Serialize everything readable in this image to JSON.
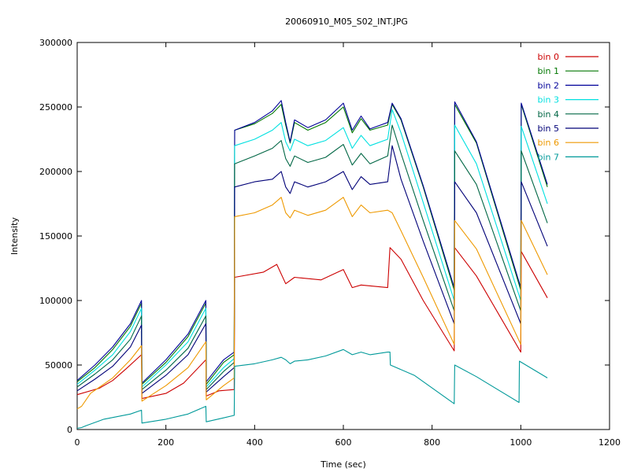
{
  "chart_data": {
    "type": "line",
    "title": "20060910_M05_S02_INT.JPG",
    "xlabel": "Time (sec)",
    "ylabel": "Intensity",
    "xlim": [
      0,
      1200
    ],
    "ylim": [
      0,
      300000
    ],
    "xticks": [
      0,
      200,
      400,
      600,
      800,
      1000,
      1200
    ],
    "yticks": [
      0,
      50000,
      100000,
      150000,
      200000,
      250000,
      300000
    ],
    "grid": false,
    "legend_position": "top-right",
    "series": [
      {
        "name": "bin 0",
        "color": "#cc0000",
        "x": [
          0,
          50,
          80,
          110,
          145,
          146,
          200,
          240,
          290,
          291,
          320,
          354,
          355,
          420,
          450,
          470,
          490,
          550,
          600,
          620,
          640,
          700,
          705,
          730,
          780,
          850,
          851,
          900,
          1000,
          1001,
          1060
        ],
        "y": [
          27000,
          32000,
          38000,
          47000,
          58000,
          24000,
          28000,
          36000,
          54000,
          26000,
          30000,
          31000,
          118000,
          122000,
          128000,
          113000,
          118000,
          116000,
          124000,
          110000,
          112000,
          110000,
          141000,
          132000,
          100000,
          61000,
          141000,
          119000,
          60000,
          138000,
          102000
        ]
      },
      {
        "name": "bin 1",
        "color": "#007700",
        "x": [
          0,
          40,
          80,
          120,
          145,
          146,
          200,
          250,
          290,
          291,
          330,
          354,
          355,
          400,
          440,
          460,
          470,
          480,
          490,
          520,
          560,
          600,
          620,
          640,
          660,
          700,
          710,
          730,
          780,
          850,
          851,
          900,
          1000,
          1001,
          1060
        ],
        "y": [
          37000,
          48000,
          62000,
          80000,
          98000,
          35000,
          52000,
          72000,
          98000,
          35000,
          52000,
          58000,
          232000,
          237000,
          245000,
          252000,
          236000,
          222000,
          238000,
          232000,
          238000,
          250000,
          230000,
          241000,
          232000,
          236000,
          252000,
          240000,
          188000,
          108000,
          252000,
          222000,
          108000,
          252000,
          188000
        ]
      },
      {
        "name": "bin 2",
        "color": "#000099",
        "x": [
          0,
          40,
          80,
          120,
          145,
          146,
          200,
          250,
          290,
          291,
          330,
          354,
          355,
          400,
          440,
          460,
          470,
          480,
          490,
          520,
          560,
          600,
          620,
          640,
          660,
          700,
          710,
          730,
          780,
          850,
          851,
          900,
          1000,
          1001,
          1060
        ],
        "y": [
          38000,
          50000,
          64000,
          82000,
          100000,
          36000,
          54000,
          74000,
          100000,
          37000,
          54000,
          60000,
          232000,
          238000,
          247000,
          255000,
          238000,
          223000,
          240000,
          234000,
          240000,
          253000,
          232000,
          243000,
          233000,
          238000,
          253000,
          241000,
          189000,
          110000,
          254000,
          223000,
          110000,
          253000,
          190000
        ]
      },
      {
        "name": "bin 3",
        "color": "#00e0e0",
        "x": [
          0,
          40,
          80,
          120,
          145,
          146,
          200,
          250,
          290,
          291,
          330,
          354,
          355,
          400,
          440,
          460,
          470,
          480,
          490,
          520,
          560,
          600,
          620,
          640,
          660,
          700,
          710,
          730,
          780,
          850,
          851,
          900,
          1000,
          1001,
          1060
        ],
        "y": [
          35000,
          46000,
          58000,
          76000,
          94000,
          33000,
          50000,
          68000,
          94000,
          33000,
          48000,
          55000,
          220000,
          225000,
          232000,
          238000,
          223000,
          216000,
          225000,
          220000,
          224000,
          234000,
          218000,
          228000,
          220000,
          225000,
          248000,
          230000,
          176000,
          100000,
          236000,
          206000,
          100000,
          235000,
          175000
        ]
      },
      {
        "name": "bin 4",
        "color": "#006644",
        "x": [
          0,
          40,
          80,
          120,
          145,
          146,
          200,
          250,
          290,
          291,
          330,
          354,
          355,
          400,
          440,
          460,
          470,
          480,
          490,
          520,
          560,
          600,
          620,
          640,
          660,
          700,
          710,
          730,
          780,
          850,
          851,
          900,
          1000,
          1001,
          1060
        ],
        "y": [
          33000,
          43000,
          54000,
          70000,
          88000,
          31000,
          46000,
          63000,
          88000,
          31000,
          45000,
          52000,
          206000,
          212000,
          218000,
          224000,
          210000,
          204000,
          212000,
          207000,
          211000,
          221000,
          205000,
          214000,
          206000,
          212000,
          236000,
          214000,
          162000,
          92000,
          216000,
          190000,
          92000,
          216000,
          160000
        ]
      },
      {
        "name": "bin 5",
        "color": "#000077",
        "x": [
          0,
          40,
          80,
          120,
          145,
          146,
          200,
          250,
          290,
          291,
          330,
          354,
          355,
          400,
          440,
          460,
          470,
          480,
          490,
          520,
          560,
          600,
          620,
          640,
          660,
          700,
          710,
          730,
          780,
          850,
          851,
          900,
          1000,
          1001,
          1060
        ],
        "y": [
          30000,
          39000,
          49000,
          64000,
          81000,
          28000,
          42000,
          58000,
          82000,
          29000,
          41000,
          48000,
          188000,
          192000,
          194000,
          200000,
          188000,
          183000,
          192000,
          188000,
          192000,
          200000,
          186000,
          196000,
          190000,
          192000,
          220000,
          194000,
          146000,
          82000,
          192000,
          168000,
          82000,
          192000,
          142000
        ]
      },
      {
        "name": "bin 6",
        "color": "#ee9900",
        "x": [
          0,
          10,
          30,
          80,
          120,
          145,
          146,
          200,
          250,
          290,
          291,
          330,
          354,
          355,
          400,
          440,
          460,
          470,
          480,
          490,
          520,
          560,
          600,
          620,
          640,
          660,
          700,
          710,
          730,
          780,
          850,
          851,
          900,
          1000,
          1001,
          1060
        ],
        "y": [
          16000,
          18000,
          28000,
          40000,
          54000,
          65000,
          22000,
          34000,
          48000,
          68000,
          23000,
          34000,
          40000,
          165000,
          168000,
          174000,
          180000,
          168000,
          164000,
          170000,
          166000,
          170000,
          180000,
          165000,
          174000,
          168000,
          170000,
          168000,
          154000,
          118000,
          66000,
          162000,
          140000,
          66000,
          162000,
          120000
        ]
      },
      {
        "name": "bin 7",
        "color": "#009999",
        "x": [
          0,
          10,
          20,
          60,
          120,
          145,
          146,
          200,
          250,
          290,
          291,
          330,
          354,
          355,
          400,
          440,
          460,
          470,
          480,
          490,
          520,
          560,
          600,
          620,
          640,
          660,
          700,
          705,
          706,
          760,
          850,
          851,
          900,
          996,
          997,
          1060
        ],
        "y": [
          1000,
          1500,
          3000,
          8000,
          12000,
          15000,
          5000,
          8000,
          12000,
          18000,
          6000,
          9000,
          11000,
          49000,
          51000,
          54000,
          56000,
          54000,
          51000,
          53000,
          54000,
          57000,
          62000,
          58000,
          60000,
          58000,
          60000,
          60000,
          50000,
          42000,
          20000,
          50000,
          41000,
          21000,
          53000,
          40000
        ]
      }
    ]
  }
}
